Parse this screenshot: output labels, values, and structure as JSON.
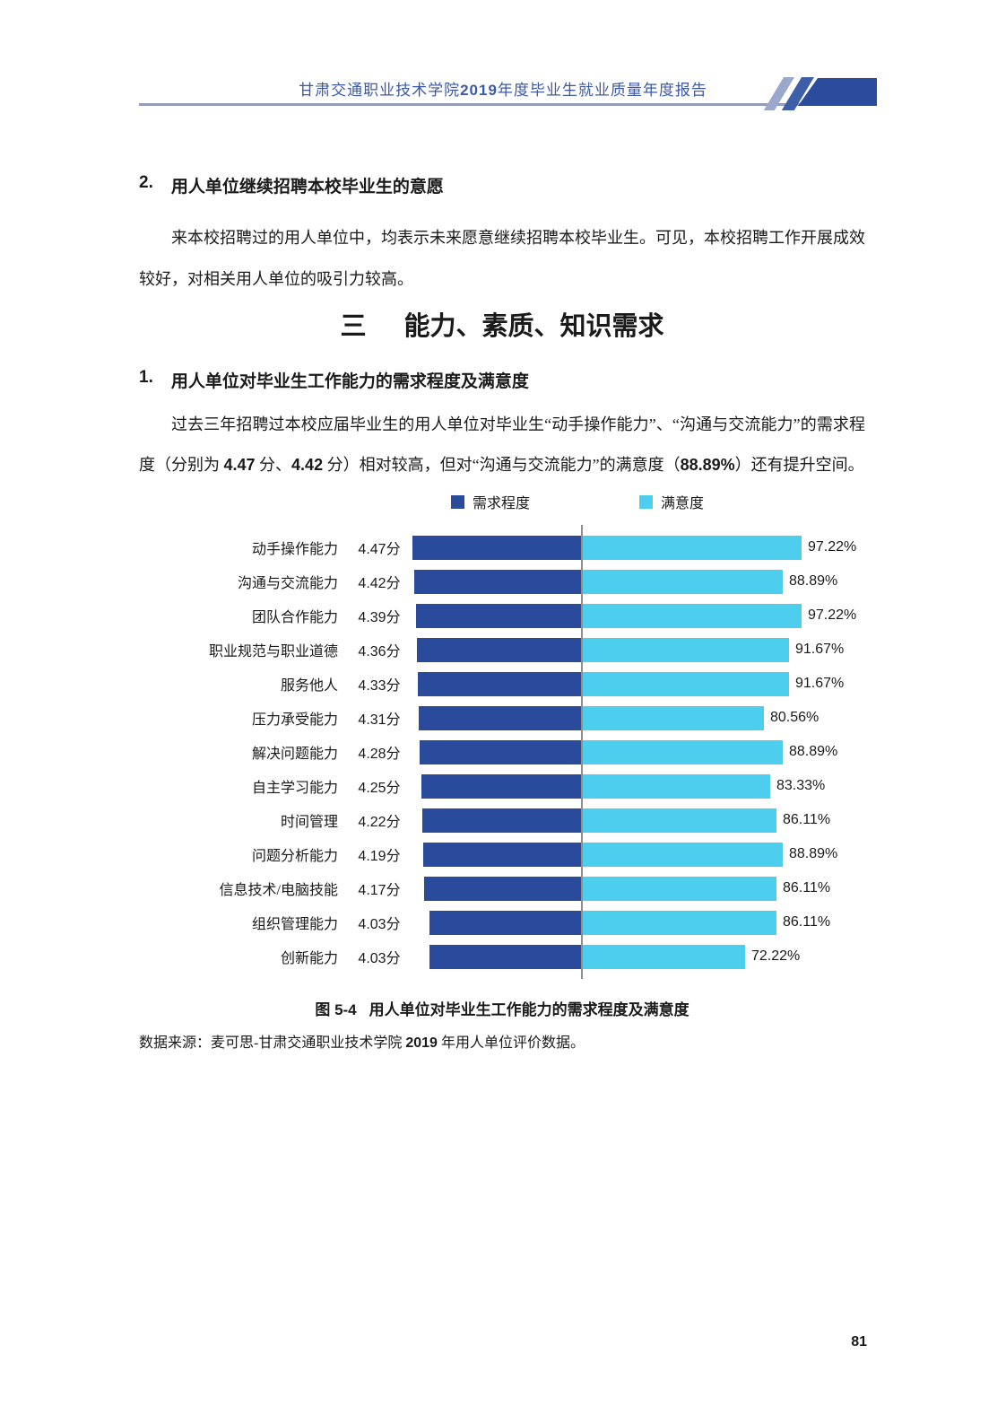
{
  "header": {
    "title_parts": [
      {
        "text": "甘肃交通职业技术学院",
        "bold": false
      },
      {
        "text": "2019",
        "bold": true
      },
      {
        "text": "年度毕业生就业质量年度报告",
        "bold": false
      }
    ]
  },
  "section2": {
    "number": "2.",
    "title": "用人单位继续招聘本校毕业生的意愿",
    "paragraph": "来本校招聘过的用人单位中，均表示未来愿意继续招聘本校毕业生。可见，本校招聘工作开展成效较好，对相关用人单位的吸引力较高。"
  },
  "section3": {
    "number": "三",
    "title": "能力、素质、知识需求"
  },
  "section3_1": {
    "number": "1.",
    "title": "用人单位对毕业生工作能力的需求程度及满意度",
    "paragraph_parts": [
      {
        "text": "过去三年招聘过本校应届毕业生的用人单位对毕业生“动手操作能力”、“沟通与交流能力”的需求程度（分别为 ",
        "bold": false
      },
      {
        "text": "4.47",
        "bold": true
      },
      {
        "text": " 分、",
        "bold": false
      },
      {
        "text": "4.42",
        "bold": true
      },
      {
        "text": " 分）相对较高，但对“沟通与交流能力”的满意度（",
        "bold": false
      },
      {
        "text": "88.89%",
        "bold": true
      },
      {
        "text": "）还有提升空间。",
        "bold": false
      }
    ]
  },
  "chart_data": {
    "type": "bar",
    "orientation": "horizontal-diverging",
    "title": "用人单位对毕业生工作能力的需求程度及满意度",
    "legend_position": "top",
    "legend": [
      {
        "label": "需求程度",
        "color": "#2a4b9c"
      },
      {
        "label": "满意度",
        "color": "#4dceee"
      }
    ],
    "divider_color": "#8f8f8f",
    "categories": [
      "动手操作能力",
      "沟通与交流能力",
      "团队合作能力",
      "职业规范与职业道德",
      "服务他人",
      "压力承受能力",
      "解决问题能力",
      "自主学习能力",
      "时间管理",
      "问题分析能力",
      "信息技术/电脑技能",
      "组织管理能力",
      "创新能力"
    ],
    "series": [
      {
        "name": "需求程度",
        "unit": "分",
        "axis_max": 5,
        "color": "#2a4b9c",
        "values": [
          4.47,
          4.42,
          4.39,
          4.36,
          4.33,
          4.31,
          4.28,
          4.25,
          4.22,
          4.19,
          4.17,
          4.03,
          4.03
        ],
        "labels": [
          "4.47分",
          "4.42分",
          "4.39分",
          "4.36分",
          "4.33分",
          "4.31分",
          "4.28分",
          "4.25分",
          "4.22分",
          "4.19分",
          "4.17分",
          "4.03分",
          "4.03分"
        ]
      },
      {
        "name": "满意度",
        "unit": "%",
        "axis_max": 100,
        "color": "#4dceee",
        "values": [
          97.22,
          88.89,
          97.22,
          91.67,
          91.67,
          80.56,
          88.89,
          83.33,
          86.11,
          88.89,
          86.11,
          86.11,
          72.22
        ],
        "labels": [
          "97.22%",
          "88.89%",
          "97.22%",
          "91.67%",
          "91.67%",
          "80.56%",
          "88.89%",
          "83.33%",
          "86.11%",
          "88.89%",
          "86.11%",
          "86.11%",
          "72.22%"
        ]
      }
    ]
  },
  "figure": {
    "caption_prefix": "图 5-4",
    "caption_title": "用人单位对毕业生工作能力的需求程度及满意度"
  },
  "source_parts": [
    {
      "text": "数据来源：麦可思-甘肃交通职业技术学院 ",
      "bold": false
    },
    {
      "text": "2019",
      "bold": true
    },
    {
      "text": " 年用人单位评价数据。",
      "bold": false
    }
  ],
  "footer": {
    "page_number": "81"
  }
}
